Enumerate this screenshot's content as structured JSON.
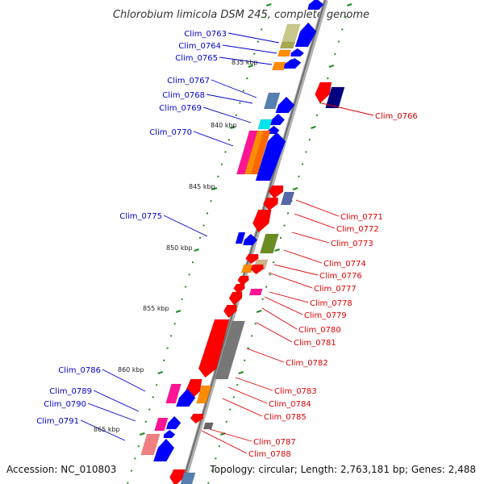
{
  "title": "Chlorobium limicola DSM 245, complete genome",
  "accession": "Accession: NC_010803",
  "topology": "Topology: circular; Length: 2,763,181 bp; Genes: 2,488",
  "colors": {
    "left_label": "#0000cc",
    "right_label": "#dd0000",
    "tick": "#228b22",
    "backbone": "#888888"
  },
  "scale_marks": [
    "835 kbp",
    "840 kbp",
    "845 kbp",
    "850 kbp",
    "855 kbp",
    "860 kbp",
    "865 kbp"
  ],
  "left_genes": [
    {
      "id": "Clim_0763",
      "color": "#0000ff"
    },
    {
      "id": "Clim_0764",
      "color": "#0000ff"
    },
    {
      "id": "Clim_0765",
      "color": "#0000ff"
    },
    {
      "id": "Clim_0767",
      "color": "#0000ff"
    },
    {
      "id": "Clim_0768",
      "color": "#0000ff"
    },
    {
      "id": "Clim_0769",
      "color": "#0000ff"
    },
    {
      "id": "Clim_0770",
      "color": "#0000ff"
    },
    {
      "id": "Clim_0775",
      "color": "#0000ff"
    },
    {
      "id": "Clim_0786",
      "color": "#0000ff"
    },
    {
      "id": "Clim_0789",
      "color": "#0000ff"
    },
    {
      "id": "Clim_0790",
      "color": "#0000ff"
    },
    {
      "id": "Clim_0791",
      "color": "#0000ff"
    }
  ],
  "right_genes": [
    {
      "id": "Clim_0766",
      "color": "#ff0000"
    },
    {
      "id": "Clim_0771",
      "color": "#ff0000"
    },
    {
      "id": "Clim_0772",
      "color": "#ff0000"
    },
    {
      "id": "Clim_0773",
      "color": "#ff0000"
    },
    {
      "id": "Clim_0774",
      "color": "#ff0000"
    },
    {
      "id": "Clim_0776",
      "color": "#ff0000"
    },
    {
      "id": "Clim_0777",
      "color": "#ff0000"
    },
    {
      "id": "Clim_0778",
      "color": "#ff0000"
    },
    {
      "id": "Clim_0779",
      "color": "#ff0000"
    },
    {
      "id": "Clim_0780",
      "color": "#ff0000"
    },
    {
      "id": "Clim_0781",
      "color": "#ff0000"
    },
    {
      "id": "Clim_0782",
      "color": "#ff0000"
    },
    {
      "id": "Clim_0783",
      "color": "#ff0000"
    },
    {
      "id": "Clim_0784",
      "color": "#ff0000"
    },
    {
      "id": "Clim_0785",
      "color": "#ff0000"
    },
    {
      "id": "Clim_0787",
      "color": "#ff0000"
    },
    {
      "id": "Clim_0788",
      "color": "#ff0000"
    }
  ]
}
